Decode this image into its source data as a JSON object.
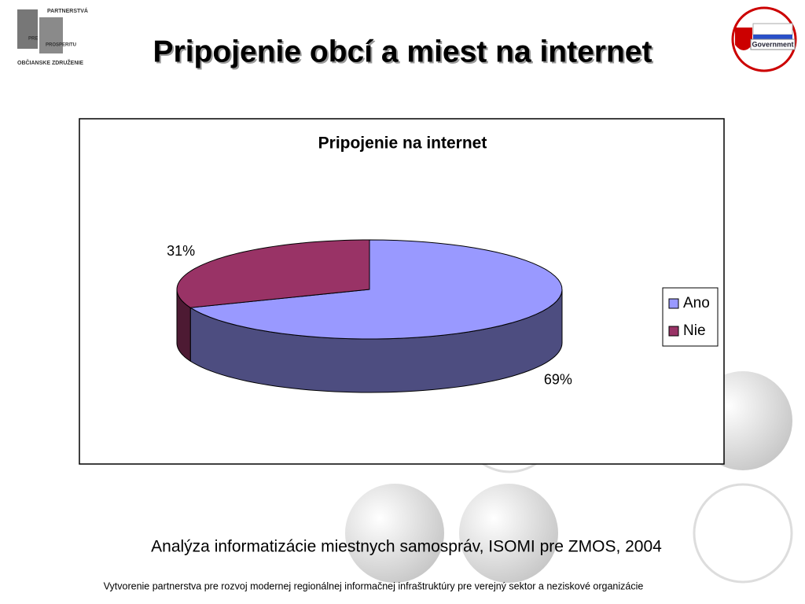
{
  "slide": {
    "title": "Pripojenie obcí a miest na internet",
    "source": "Analýza informatizácie miestnych samospráv, ISOMI pre ZMOS, 2004",
    "footer": "Vytvorenie partnerstva pre rozvoj modernej regionálnej informačnej infraštruktúry pre verejný sektor a neziskové organizácie",
    "logo_left": [
      "PARTNERSTVÁ",
      "PRE",
      "PROSPERITU",
      "OBČIANSKE ZDRUŽENIE"
    ],
    "logo_right": "Government"
  },
  "chart_data": {
    "type": "pie",
    "title": "Pripojenie na internet",
    "categories": [
      "Ano",
      "Nie"
    ],
    "values": [
      69,
      31
    ],
    "value_labels": [
      "69%",
      "31%"
    ],
    "colors": [
      "#9999ff",
      "#993366"
    ],
    "legend": "right"
  }
}
